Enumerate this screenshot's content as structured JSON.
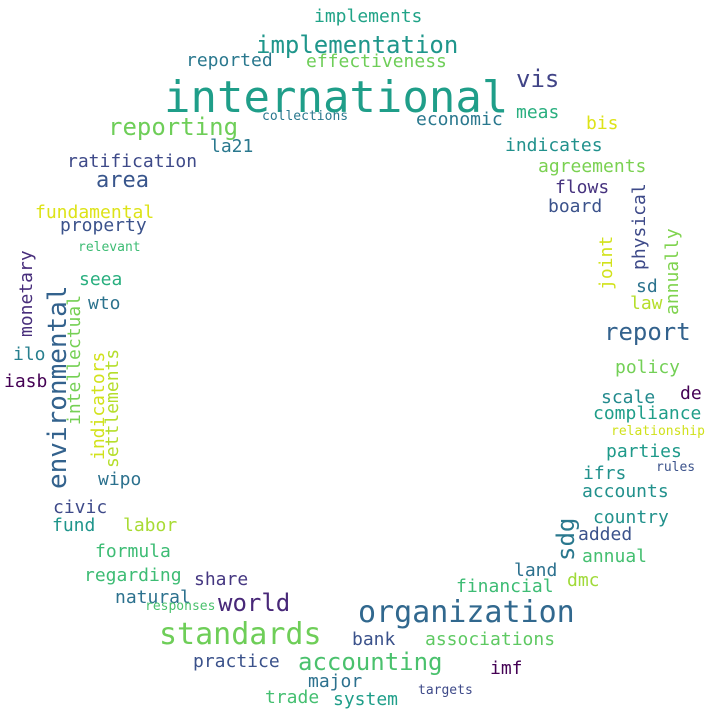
{
  "words": [
    {
      "text": "international",
      "color": "#1f9e89"
    },
    {
      "text": "implementation",
      "color": "#1f968b"
    },
    {
      "text": "implements",
      "color": "#20a387"
    },
    {
      "text": "reported",
      "color": "#2a788e"
    },
    {
      "text": "effectiveness",
      "color": "#6ece58"
    },
    {
      "text": "reporting",
      "color": "#6ece58"
    },
    {
      "text": "vis",
      "color": "#414487"
    },
    {
      "text": "meas",
      "color": "#29af7f"
    },
    {
      "text": "collections",
      "color": "#2a788e"
    },
    {
      "text": "economic",
      "color": "#2a788e"
    },
    {
      "text": "bis",
      "color": "#dde318"
    },
    {
      "text": "indicates",
      "color": "#21918c"
    },
    {
      "text": "la21",
      "color": "#2a788e"
    },
    {
      "text": "ratification",
      "color": "#3e4a89"
    },
    {
      "text": "agreements",
      "color": "#7ad151"
    },
    {
      "text": "area",
      "color": "#39568c"
    },
    {
      "text": "flows",
      "color": "#46327e"
    },
    {
      "text": "physical",
      "color": "#3e4a89"
    },
    {
      "text": "board",
      "color": "#3b528b"
    },
    {
      "text": "fundamental",
      "color": "#dde318"
    },
    {
      "text": "property",
      "color": "#3b528b"
    },
    {
      "text": "relevant",
      "color": "#3dbc74"
    },
    {
      "text": "joint",
      "color": "#d2e21b"
    },
    {
      "text": "annually",
      "color": "#7fd34e"
    },
    {
      "text": "environmental",
      "color": "#33628d"
    },
    {
      "text": "monetary",
      "color": "#472d7b"
    },
    {
      "text": "seea",
      "color": "#29af7f"
    },
    {
      "text": "sd",
      "color": "#2c738e"
    },
    {
      "text": "wto",
      "color": "#2c738e"
    },
    {
      "text": "law",
      "color": "#b5de2b"
    },
    {
      "text": "intellectual",
      "color": "#75d054"
    },
    {
      "text": "report",
      "color": "#33628d"
    },
    {
      "text": "ilo",
      "color": "#277f8e"
    },
    {
      "text": "indicators",
      "color": "#d2e21b"
    },
    {
      "text": "settlements",
      "color": "#b5de2b"
    },
    {
      "text": "policy",
      "color": "#73d056"
    },
    {
      "text": "iasb",
      "color": "#440154"
    },
    {
      "text": "de",
      "color": "#440154"
    },
    {
      "text": "scale",
      "color": "#238a8d"
    },
    {
      "text": "compliance",
      "color": "#1f9e89"
    },
    {
      "text": "relationship",
      "color": "#d0e11c"
    },
    {
      "text": "parties",
      "color": "#1f9a8a"
    },
    {
      "text": "ifrs",
      "color": "#21918c"
    },
    {
      "text": "rules",
      "color": "#3b528b"
    },
    {
      "text": "wipo",
      "color": "#2c718e"
    },
    {
      "text": "accounts",
      "color": "#21918c"
    },
    {
      "text": "civic",
      "color": "#3e4a89"
    },
    {
      "text": "sdg",
      "color": "#2a788e"
    },
    {
      "text": "fund",
      "color": "#1f958b"
    },
    {
      "text": "labor",
      "color": "#a8db34"
    },
    {
      "text": "country",
      "color": "#21918c"
    },
    {
      "text": "added",
      "color": "#3b528b"
    },
    {
      "text": "formula",
      "color": "#3dbc74"
    },
    {
      "text": "annual",
      "color": "#44bf70"
    },
    {
      "text": "regarding",
      "color": "#3dbc74"
    },
    {
      "text": "land",
      "color": "#2c718e"
    },
    {
      "text": "share",
      "color": "#453781"
    },
    {
      "text": "dmc",
      "color": "#a0da39"
    },
    {
      "text": "financial",
      "color": "#3dbc74"
    },
    {
      "text": "natural",
      "color": "#2c718e"
    },
    {
      "text": "world",
      "color": "#482878"
    },
    {
      "text": "responses",
      "color": "#4ac16d"
    },
    {
      "text": "organization",
      "color": "#31688e"
    },
    {
      "text": "standards",
      "color": "#6ece58"
    },
    {
      "text": "bank",
      "color": "#3b528b"
    },
    {
      "text": "associations",
      "color": "#5ec962"
    },
    {
      "text": "practice",
      "color": "#3b528b"
    },
    {
      "text": "accounting",
      "color": "#4ac16d"
    },
    {
      "text": "imf",
      "color": "#440154"
    },
    {
      "text": "major",
      "color": "#2c718e"
    },
    {
      "text": "trade",
      "color": "#44bf70"
    },
    {
      "text": "system",
      "color": "#1f9e89"
    },
    {
      "text": "targets",
      "color": "#3e4a89"
    }
  ]
}
